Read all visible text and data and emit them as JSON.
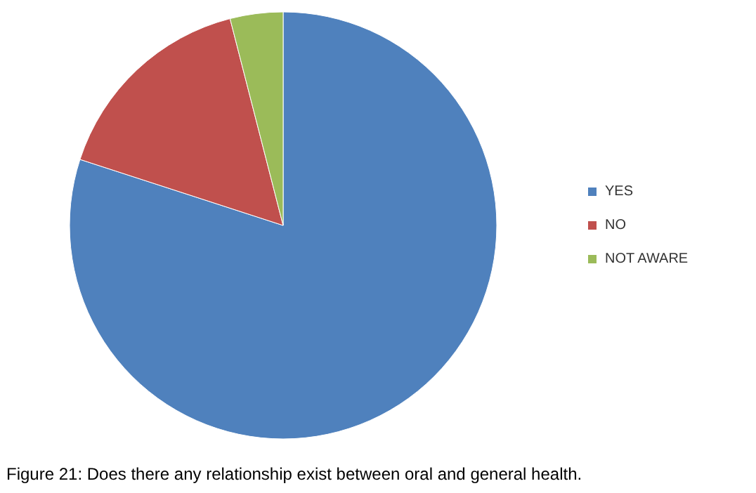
{
  "chart_data": {
    "type": "pie",
    "title": "Figure 21: Does there any relationship exist between oral and general health.",
    "categories": [
      "YES",
      "NO",
      "NOT AWARE"
    ],
    "values": [
      80,
      16,
      4
    ],
    "colors": [
      "#4f81bd",
      "#c0504d",
      "#9bbb59"
    ],
    "legend": "right"
  }
}
